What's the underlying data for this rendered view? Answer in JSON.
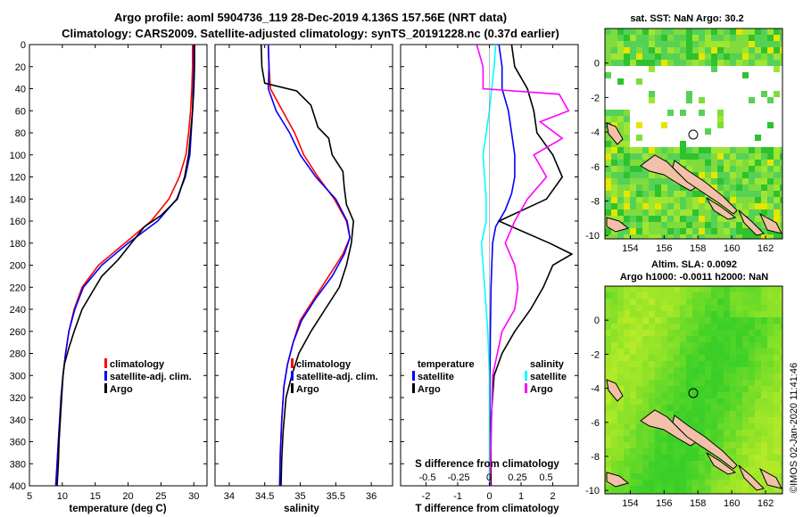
{
  "title_line1": "Argo profile: aoml 5904736_119 28-Dec-2019 4.136S 157.56E (NRT data)",
  "title_line2": "Climatology: CARS2009. Satellite-adjusted climatology: synTS_20191228.nc (0.37d earlier)",
  "credit": "©IMOS 02-Jan-2020 11:41:46",
  "colors": {
    "climatology": "#ff0000",
    "satellite": "#0000ff",
    "argo": "#000000",
    "sat_salinity": "#00ffff",
    "clim_salinity": "#ff00ff",
    "land": "#f2c0a8"
  },
  "chart_data": [
    {
      "type": "line",
      "name": "temperature",
      "xlabel": "temperature (deg C)",
      "xlim": [
        5,
        32
      ],
      "ylim": [
        400,
        0
      ],
      "xticks": [
        5,
        10,
        15,
        20,
        25,
        30
      ],
      "yticks": [
        0,
        20,
        40,
        60,
        80,
        100,
        120,
        140,
        160,
        180,
        200,
        220,
        240,
        260,
        280,
        300,
        320,
        340,
        360,
        380,
        400
      ],
      "legend": [
        "climatology",
        "satellite-adj. clim.",
        "Argo"
      ],
      "series": [
        {
          "name": "climatology",
          "color": "#ff0000",
          "points": [
            [
              29.8,
              0
            ],
            [
              29.8,
              20
            ],
            [
              29.7,
              40
            ],
            [
              29.5,
              60
            ],
            [
              29.2,
              80
            ],
            [
              28.8,
              100
            ],
            [
              27.8,
              120
            ],
            [
              26.2,
              140
            ],
            [
              23.5,
              160
            ],
            [
              19.5,
              180
            ],
            [
              15.5,
              200
            ],
            [
              13.0,
              220
            ],
            [
              11.8,
              240
            ],
            [
              11.0,
              260
            ],
            [
              10.5,
              280
            ],
            [
              10.1,
              300
            ],
            [
              9.8,
              320
            ],
            [
              9.6,
              340
            ],
            [
              9.4,
              360
            ],
            [
              9.2,
              380
            ],
            [
              9.0,
              400
            ]
          ]
        },
        {
          "name": "satellite-adj. clim.",
          "color": "#0000ff",
          "points": [
            [
              30.0,
              0
            ],
            [
              30.0,
              20
            ],
            [
              29.9,
              40
            ],
            [
              29.8,
              60
            ],
            [
              29.6,
              80
            ],
            [
              29.4,
              100
            ],
            [
              28.7,
              120
            ],
            [
              27.4,
              140
            ],
            [
              24.5,
              160
            ],
            [
              20.0,
              180
            ],
            [
              16.0,
              200
            ],
            [
              13.2,
              220
            ],
            [
              11.9,
              240
            ],
            [
              11.0,
              260
            ],
            [
              10.5,
              280
            ],
            [
              10.1,
              300
            ],
            [
              9.8,
              320
            ],
            [
              9.6,
              340
            ],
            [
              9.4,
              360
            ],
            [
              9.2,
              380
            ],
            [
              9.0,
              400
            ]
          ]
        },
        {
          "name": "Argo",
          "color": "#000000",
          "points": [
            [
              30.1,
              0
            ],
            [
              30.1,
              20
            ],
            [
              30.0,
              40
            ],
            [
              29.8,
              60
            ],
            [
              29.5,
              80
            ],
            [
              29.2,
              100
            ],
            [
              28.6,
              120
            ],
            [
              27.5,
              140
            ],
            [
              25.0,
              155
            ],
            [
              22.5,
              165
            ],
            [
              20.5,
              180
            ],
            [
              18.5,
              195
            ],
            [
              16.0,
              210
            ],
            [
              14.5,
              225
            ],
            [
              13.0,
              240
            ],
            [
              11.8,
              260
            ],
            [
              11.0,
              275
            ],
            [
              10.3,
              290
            ],
            [
              10.1,
              300
            ],
            [
              9.9,
              320
            ],
            [
              9.7,
              340
            ],
            [
              9.5,
              360
            ],
            [
              9.4,
              380
            ],
            [
              9.2,
              400
            ]
          ]
        }
      ]
    },
    {
      "type": "line",
      "name": "salinity",
      "xlabel": "salinity",
      "xlim": [
        33.8,
        36.3
      ],
      "ylim": [
        400,
        0
      ],
      "xticks": [
        34,
        34.5,
        35,
        35.5,
        36
      ],
      "legend": [
        "climatology",
        "satellite-adj. clim.",
        "Argo"
      ],
      "series": [
        {
          "name": "climatology",
          "color": "#ff0000",
          "points": [
            [
              34.55,
              0
            ],
            [
              34.56,
              20
            ],
            [
              34.58,
              40
            ],
            [
              34.75,
              60
            ],
            [
              34.92,
              80
            ],
            [
              35.05,
              100
            ],
            [
              35.25,
              120
            ],
            [
              35.48,
              140
            ],
            [
              35.65,
              160
            ],
            [
              35.7,
              175
            ],
            [
              35.6,
              190
            ],
            [
              35.4,
              210
            ],
            [
              35.2,
              230
            ],
            [
              35.0,
              250
            ],
            [
              34.9,
              270
            ],
            [
              34.82,
              290
            ],
            [
              34.77,
              310
            ],
            [
              34.74,
              340
            ],
            [
              34.72,
              370
            ],
            [
              34.71,
              400
            ]
          ]
        },
        {
          "name": "satellite-adj. clim.",
          "color": "#0000ff",
          "points": [
            [
              34.55,
              0
            ],
            [
              34.56,
              20
            ],
            [
              34.55,
              40
            ],
            [
              34.66,
              60
            ],
            [
              34.85,
              80
            ],
            [
              35.0,
              100
            ],
            [
              35.22,
              120
            ],
            [
              35.5,
              140
            ],
            [
              35.66,
              160
            ],
            [
              35.7,
              175
            ],
            [
              35.62,
              190
            ],
            [
              35.45,
              210
            ],
            [
              35.22,
              230
            ],
            [
              35.02,
              250
            ],
            [
              34.9,
              270
            ],
            [
              34.82,
              290
            ],
            [
              34.77,
              310
            ],
            [
              34.74,
              340
            ],
            [
              34.72,
              370
            ],
            [
              34.71,
              400
            ]
          ]
        },
        {
          "name": "Argo",
          "color": "#000000",
          "points": [
            [
              34.45,
              0
            ],
            [
              34.46,
              20
            ],
            [
              34.5,
              35
            ],
            [
              34.95,
              42
            ],
            [
              35.15,
              55
            ],
            [
              35.25,
              75
            ],
            [
              35.4,
              85
            ],
            [
              35.45,
              100
            ],
            [
              35.6,
              115
            ],
            [
              35.62,
              130
            ],
            [
              35.65,
              145
            ],
            [
              35.75,
              160
            ],
            [
              35.72,
              180
            ],
            [
              35.65,
              200
            ],
            [
              35.55,
              220
            ],
            [
              35.35,
              240
            ],
            [
              35.15,
              260
            ],
            [
              34.98,
              280
            ],
            [
              34.88,
              300
            ],
            [
              34.8,
              320
            ],
            [
              34.76,
              350
            ],
            [
              34.74,
              375
            ],
            [
              34.73,
              400
            ]
          ]
        }
      ]
    },
    {
      "type": "line",
      "name": "difference",
      "xlabel": "T difference from climatology",
      "xlabel_top": "S difference from climatology",
      "xlim": [
        -2.8,
        2.8
      ],
      "ylim": [
        400,
        0
      ],
      "xticks": [
        -2,
        -1,
        0,
        1,
        2
      ],
      "sticks_labels": [
        "-0.5",
        "-0.25",
        "0",
        "0.25",
        "0.5"
      ],
      "legend_left": [
        "temperature",
        "satellite",
        "Argo"
      ],
      "legend_right": [
        "salinity",
        "satellite",
        "Argo"
      ],
      "series": [
        {
          "name": "T satellite",
          "color": "#0000ff",
          "points": [
            [
              0.3,
              0
            ],
            [
              0.4,
              20
            ],
            [
              0.4,
              40
            ],
            [
              0.6,
              60
            ],
            [
              0.7,
              80
            ],
            [
              0.8,
              100
            ],
            [
              0.8,
              120
            ],
            [
              0.7,
              135
            ],
            [
              0.5,
              150
            ],
            [
              0.2,
              165
            ],
            [
              0.1,
              180
            ],
            [
              0.05,
              220
            ],
            [
              0.03,
              260
            ],
            [
              0.02,
              300
            ],
            [
              0.01,
              400
            ]
          ]
        },
        {
          "name": "T Argo",
          "color": "#000000",
          "points": [
            [
              0.7,
              0
            ],
            [
              0.8,
              20
            ],
            [
              1.2,
              40
            ],
            [
              1.4,
              60
            ],
            [
              1.5,
              80
            ],
            [
              2.0,
              100
            ],
            [
              2.3,
              120
            ],
            [
              1.8,
              140
            ],
            [
              0.3,
              160
            ],
            [
              1.9,
              180
            ],
            [
              2.6,
              190
            ],
            [
              2.0,
              200
            ],
            [
              1.7,
              220
            ],
            [
              1.3,
              240
            ],
            [
              0.8,
              260
            ],
            [
              0.4,
              280
            ],
            [
              0.15,
              300
            ],
            [
              0.05,
              340
            ],
            [
              0.05,
              400
            ]
          ]
        },
        {
          "name": "S satellite",
          "color": "#00ffff",
          "points": [
            [
              0.2,
              0
            ],
            [
              0.15,
              20
            ],
            [
              0.0,
              60
            ],
            [
              -0.2,
              100
            ],
            [
              -0.1,
              140
            ],
            [
              -0.1,
              160
            ],
            [
              -0.25,
              180
            ],
            [
              -0.15,
              220
            ],
            [
              -0.05,
              260
            ],
            [
              0.0,
              300
            ],
            [
              0.0,
              400
            ]
          ]
        },
        {
          "name": "S Argo",
          "color": "#ff00ff",
          "points": [
            [
              -0.4,
              0
            ],
            [
              -0.2,
              20
            ],
            [
              -0.2,
              40
            ],
            [
              2.2,
              45
            ],
            [
              2.5,
              60
            ],
            [
              1.6,
              70
            ],
            [
              2.3,
              85
            ],
            [
              1.4,
              100
            ],
            [
              1.8,
              120
            ],
            [
              1.2,
              140
            ],
            [
              0.8,
              160
            ],
            [
              0.5,
              180
            ],
            [
              0.8,
              200
            ],
            [
              0.9,
              220
            ],
            [
              0.8,
              240
            ],
            [
              0.4,
              260
            ],
            [
              0.1,
              300
            ],
            [
              0.02,
              400
            ]
          ]
        }
      ]
    },
    {
      "type": "heatmap",
      "name": "sat-sst",
      "title": "sat. SST: NaN Argo: 30.2",
      "xticks": [
        154,
        156,
        158,
        160,
        162
      ],
      "yticks": [
        0,
        -2,
        -4,
        -6,
        -8,
        -10
      ],
      "xlim": [
        152.5,
        163
      ],
      "ylim": [
        -10.2,
        2
      ],
      "argo_marker": [
        157.56,
        -4.136
      ]
    },
    {
      "type": "heatmap",
      "name": "sla",
      "title_line1": "Altim. SLA: 0.0092",
      "title_line2": "Argo h1000: -0.0011 h2000: NaN",
      "xticks": [
        154,
        156,
        158,
        160,
        162
      ],
      "yticks": [
        0,
        -2,
        -4,
        -6,
        -8,
        -10
      ],
      "xlim": [
        152.5,
        163
      ],
      "ylim": [
        -10.2,
        2
      ],
      "argo_marker": [
        157.56,
        -4.136
      ]
    }
  ]
}
